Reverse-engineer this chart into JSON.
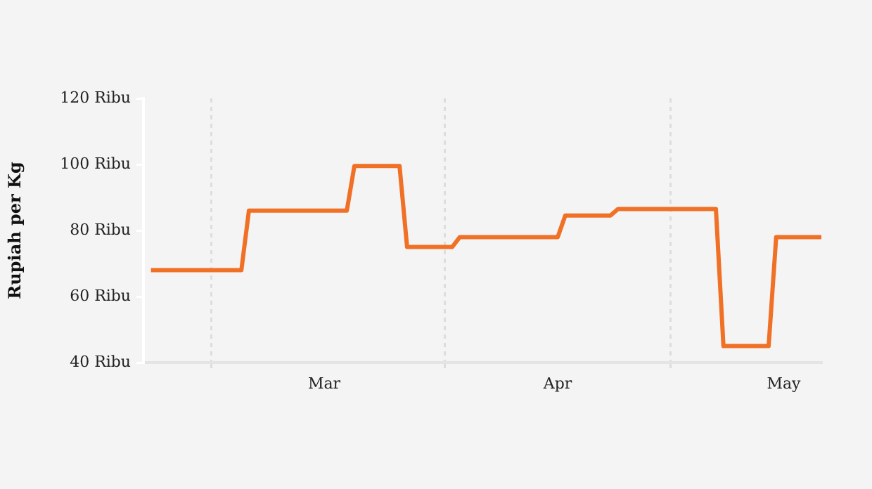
{
  "chart_data": {
    "type": "line",
    "ylabel": "Rupiah per Kg",
    "x": [
      "--02-21",
      "--03-05",
      "--03-06",
      "--03-19",
      "--03-20",
      "--03-26",
      "--03-27",
      "--04-02",
      "--04-03",
      "--04-16",
      "--04-17",
      "--04-23",
      "--04-24",
      "--05-07",
      "--05-08",
      "--05-14",
      "--05-15",
      "--05-21"
    ],
    "series": [
      {
        "color": "#f07026",
        "values": [
          68,
          68,
          86,
          86,
          99.5,
          99.5,
          75,
          75,
          78,
          78,
          84.5,
          84.5,
          86.5,
          86.5,
          45,
          45,
          78,
          78
        ]
      }
    ],
    "xlim": [
      "--02-20",
      "--05-21"
    ],
    "xticks": [
      {
        "value": "--03-01",
        "label": null
      },
      {
        "value": "--03-16",
        "label": "Mar"
      },
      {
        "value": "--04-01",
        "label": null
      },
      {
        "value": "--04-16",
        "label": "Apr"
      },
      {
        "value": "--05-01",
        "label": null
      },
      {
        "value": "--05-16",
        "label": "May"
      }
    ],
    "ylim": [
      40,
      120
    ],
    "yticks": [
      {
        "value": 40,
        "label": "40 Ribu"
      },
      {
        "value": 60,
        "label": "60 Ribu"
      },
      {
        "value": 80,
        "label": "80 Ribu"
      },
      {
        "value": 100,
        "label": "100 Ribu"
      },
      {
        "value": 120,
        "label": "120 Ribu"
      }
    ],
    "grid": "x",
    "legend": false,
    "marker": "none",
    "line_style": "solid"
  }
}
